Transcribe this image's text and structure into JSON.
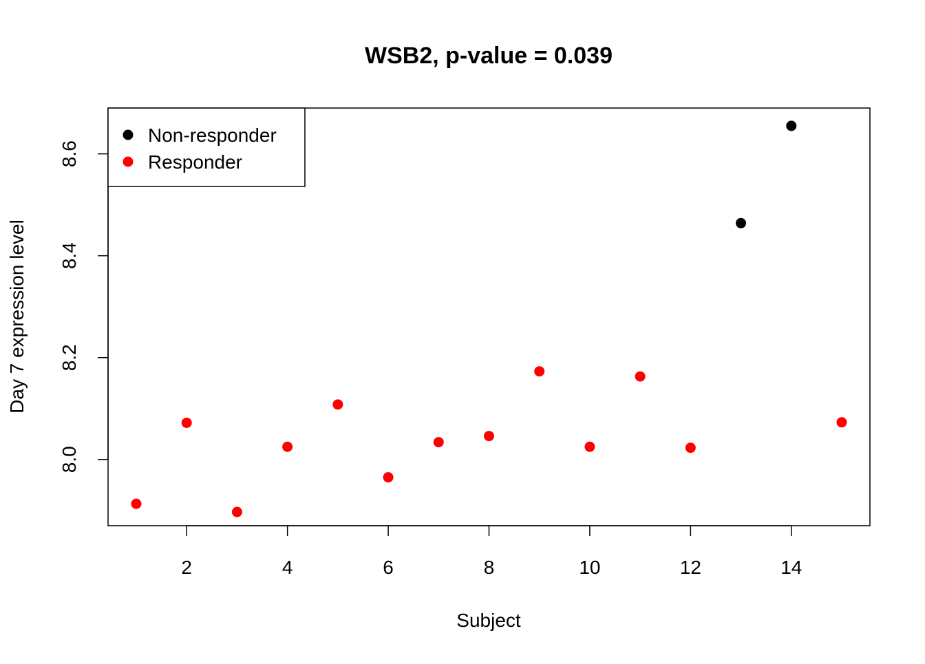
{
  "chart_data": {
    "type": "scatter",
    "title": "WSB2, p-value = 0.039",
    "xlabel": "Subject",
    "ylabel": "Day 7 expression level",
    "xlim": [
      0.44,
      15.56
    ],
    "ylim": [
      7.87,
      8.69
    ],
    "xticks": [
      2,
      4,
      6,
      8,
      10,
      12,
      14
    ],
    "yticks": [
      8.0,
      8.2,
      8.4,
      8.6
    ],
    "xtick_labels": [
      "2",
      "4",
      "6",
      "8",
      "10",
      "12",
      "14"
    ],
    "ytick_labels": [
      "8.0",
      "8.2",
      "8.4",
      "8.6"
    ],
    "grid": false,
    "legend_position": "top-left",
    "series": [
      {
        "name": "Non-responder",
        "color": "#000000",
        "points": [
          {
            "x": 13,
            "y": 8.464
          },
          {
            "x": 14,
            "y": 8.655
          }
        ]
      },
      {
        "name": "Responder",
        "color": "#ff0000",
        "points": [
          {
            "x": 1,
            "y": 7.913
          },
          {
            "x": 2,
            "y": 8.072
          },
          {
            "x": 3,
            "y": 7.897
          },
          {
            "x": 4,
            "y": 8.025
          },
          {
            "x": 5,
            "y": 8.108
          },
          {
            "x": 6,
            "y": 7.965
          },
          {
            "x": 7,
            "y": 8.034
          },
          {
            "x": 8,
            "y": 8.046
          },
          {
            "x": 9,
            "y": 8.173
          },
          {
            "x": 10,
            "y": 8.025
          },
          {
            "x": 11,
            "y": 8.163
          },
          {
            "x": 12,
            "y": 8.023
          },
          {
            "x": 15,
            "y": 8.073
          }
        ]
      }
    ]
  }
}
